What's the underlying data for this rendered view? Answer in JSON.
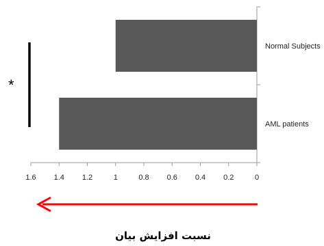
{
  "chart_data": {
    "type": "bar",
    "orientation": "horizontal",
    "x_axis_reversed": true,
    "categories": [
      "Normal Subjects",
      "AML patients"
    ],
    "values": [
      1.0,
      1.4
    ],
    "xlabel": "نسبت افزایش بیان",
    "xlim": [
      0,
      1.6
    ],
    "xticks": [
      "0",
      "0.2",
      "0.4",
      "0.6",
      "0.8",
      "1",
      "1.2",
      "1.4",
      "1.6"
    ],
    "significance_marker": "*",
    "bar_color": "#595959",
    "arrow_color": "#ff0000"
  }
}
